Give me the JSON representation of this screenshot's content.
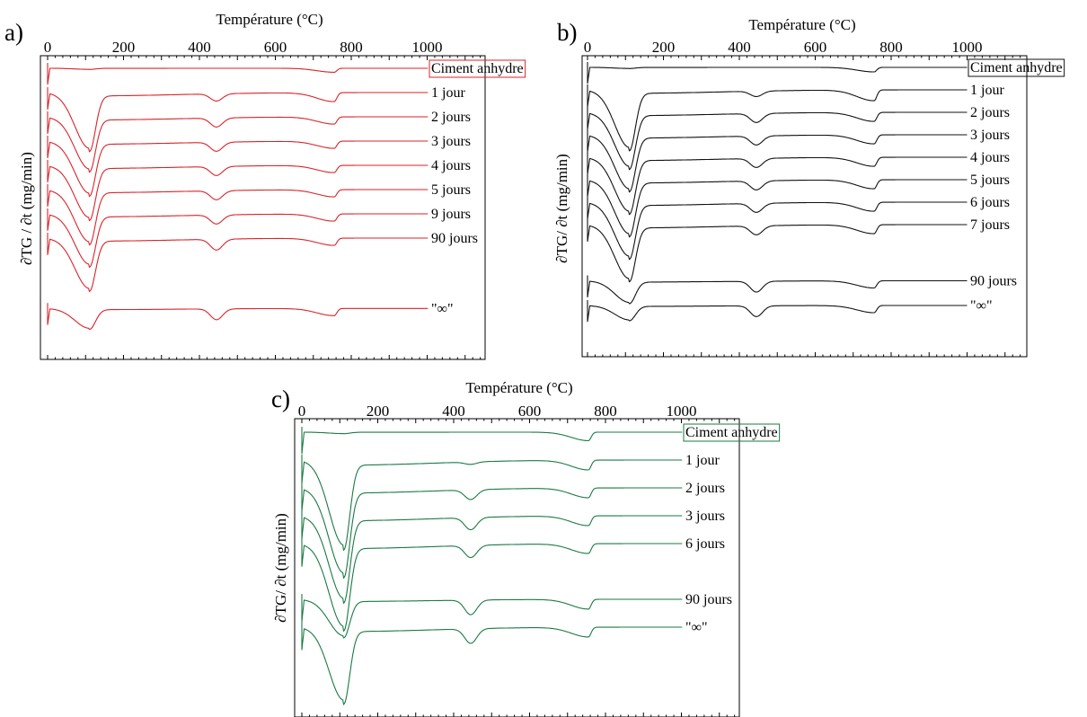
{
  "colors": {
    "a": "#d9232a",
    "b": "#111111",
    "c": "#1a7a45"
  },
  "chart_data": [
    {
      "type": "line",
      "panel_label": "a)",
      "xlabel": "Température (°C)",
      "ylabel": "∂TG / ∂t (mg/min)",
      "xticks": [
        0,
        200,
        400,
        600,
        800,
        1000
      ],
      "xlim": [
        0,
        1140
      ],
      "boxed_series": "Ciment anhydre",
      "series": [
        {
          "name": "Ciment anhydre",
          "offset": 0,
          "dip": 0.06,
          "portlandite": 0.0,
          "carbonate": 0.22
        },
        {
          "name": "1 jour",
          "offset": 1,
          "dip": 3.1,
          "portlandite": 0.4,
          "carbonate": 0.5
        },
        {
          "name": "2 jours",
          "offset": 2,
          "dip": 2.9,
          "portlandite": 0.5,
          "carbonate": 0.4
        },
        {
          "name": "3 jours",
          "offset": 3,
          "dip": 2.9,
          "portlandite": 0.5,
          "carbonate": 0.4
        },
        {
          "name": "4 jours",
          "offset": 4,
          "dip": 2.9,
          "portlandite": 0.5,
          "carbonate": 0.4
        },
        {
          "name": "5 jours",
          "offset": 5,
          "dip": 2.9,
          "portlandite": 0.5,
          "carbonate": 0.4
        },
        {
          "name": "9 jours",
          "offset": 6,
          "dip": 2.8,
          "portlandite": 0.5,
          "carbonate": 0.4
        },
        {
          "name": "90 jours",
          "offset": 7,
          "dip": 2.8,
          "portlandite": 0.6,
          "carbonate": 0.4
        },
        {
          "name": "\"∞\"",
          "offset": 9.9,
          "dip": 1.1,
          "portlandite": 0.6,
          "carbonate": 0.4
        }
      ]
    },
    {
      "type": "line",
      "panel_label": "b)",
      "xlabel": "Température (°C)",
      "ylabel": "∂TG/ ∂t (mg/min)",
      "xticks": [
        0,
        200,
        400,
        600,
        800,
        1000
      ],
      "xlim": [
        0,
        1140
      ],
      "boxed_series": "Ciment anhydre",
      "series": [
        {
          "name": "Ciment anhydre",
          "offset": 0,
          "dip": 0.06,
          "portlandite": 0.0,
          "carbonate": 0.25
        },
        {
          "name": "1 jour",
          "offset": 1,
          "dip": 3.2,
          "portlandite": 0.3,
          "carbonate": 0.6
        },
        {
          "name": "2 jours",
          "offset": 2,
          "dip": 3.0,
          "portlandite": 0.5,
          "carbonate": 0.5
        },
        {
          "name": "3 jours",
          "offset": 3,
          "dip": 3.0,
          "portlandite": 0.5,
          "carbonate": 0.5
        },
        {
          "name": "4 jours",
          "offset": 4,
          "dip": 3.0,
          "portlandite": 0.5,
          "carbonate": 0.5
        },
        {
          "name": "5 jours",
          "offset": 5,
          "dip": 3.0,
          "portlandite": 0.5,
          "carbonate": 0.5
        },
        {
          "name": "6 jours",
          "offset": 6,
          "dip": 3.0,
          "portlandite": 0.5,
          "carbonate": 0.5
        },
        {
          "name": "7 jours",
          "offset": 7,
          "dip": 3.0,
          "portlandite": 0.5,
          "carbonate": 0.5
        },
        {
          "name": "90 jours",
          "offset": 9.5,
          "dip": 1.2,
          "portlandite": 0.6,
          "carbonate": 0.4
        },
        {
          "name": "\"∞\"",
          "offset": 10.6,
          "dip": 0.8,
          "portlandite": 0.6,
          "carbonate": 0.4
        }
      ]
    },
    {
      "type": "line",
      "panel_label": "c)",
      "xlabel": "Température (°C)",
      "ylabel": "∂TG/ ∂t (mg/min)",
      "xticks": [
        0,
        200,
        400,
        600,
        800,
        1000
      ],
      "xlim": [
        0,
        1140
      ],
      "boxed_series": "Ciment anhydre",
      "series": [
        {
          "name": "Ciment anhydre",
          "offset": 0,
          "dip": 0.06,
          "portlandite": 0.0,
          "carbonate": 0.35
        },
        {
          "name": "1 jour",
          "offset": 1,
          "dip": 3.5,
          "portlandite": 0.1,
          "carbonate": 0.4
        },
        {
          "name": "2 jours",
          "offset": 2,
          "dip": 3.5,
          "portlandite": 0.4,
          "carbonate": 0.4
        },
        {
          "name": "3 jours",
          "offset": 3,
          "dip": 3.4,
          "portlandite": 0.5,
          "carbonate": 0.4
        },
        {
          "name": "6 jours",
          "offset": 4,
          "dip": 3.4,
          "portlandite": 0.5,
          "carbonate": 0.4
        },
        {
          "name": "90 jours",
          "offset": 6,
          "dip": 1.5,
          "portlandite": 0.6,
          "carbonate": 0.4
        },
        {
          "name": "\"∞\"",
          "offset": 7,
          "dip": 3.0,
          "portlandite": 0.6,
          "carbonate": 0.4
        }
      ]
    }
  ]
}
